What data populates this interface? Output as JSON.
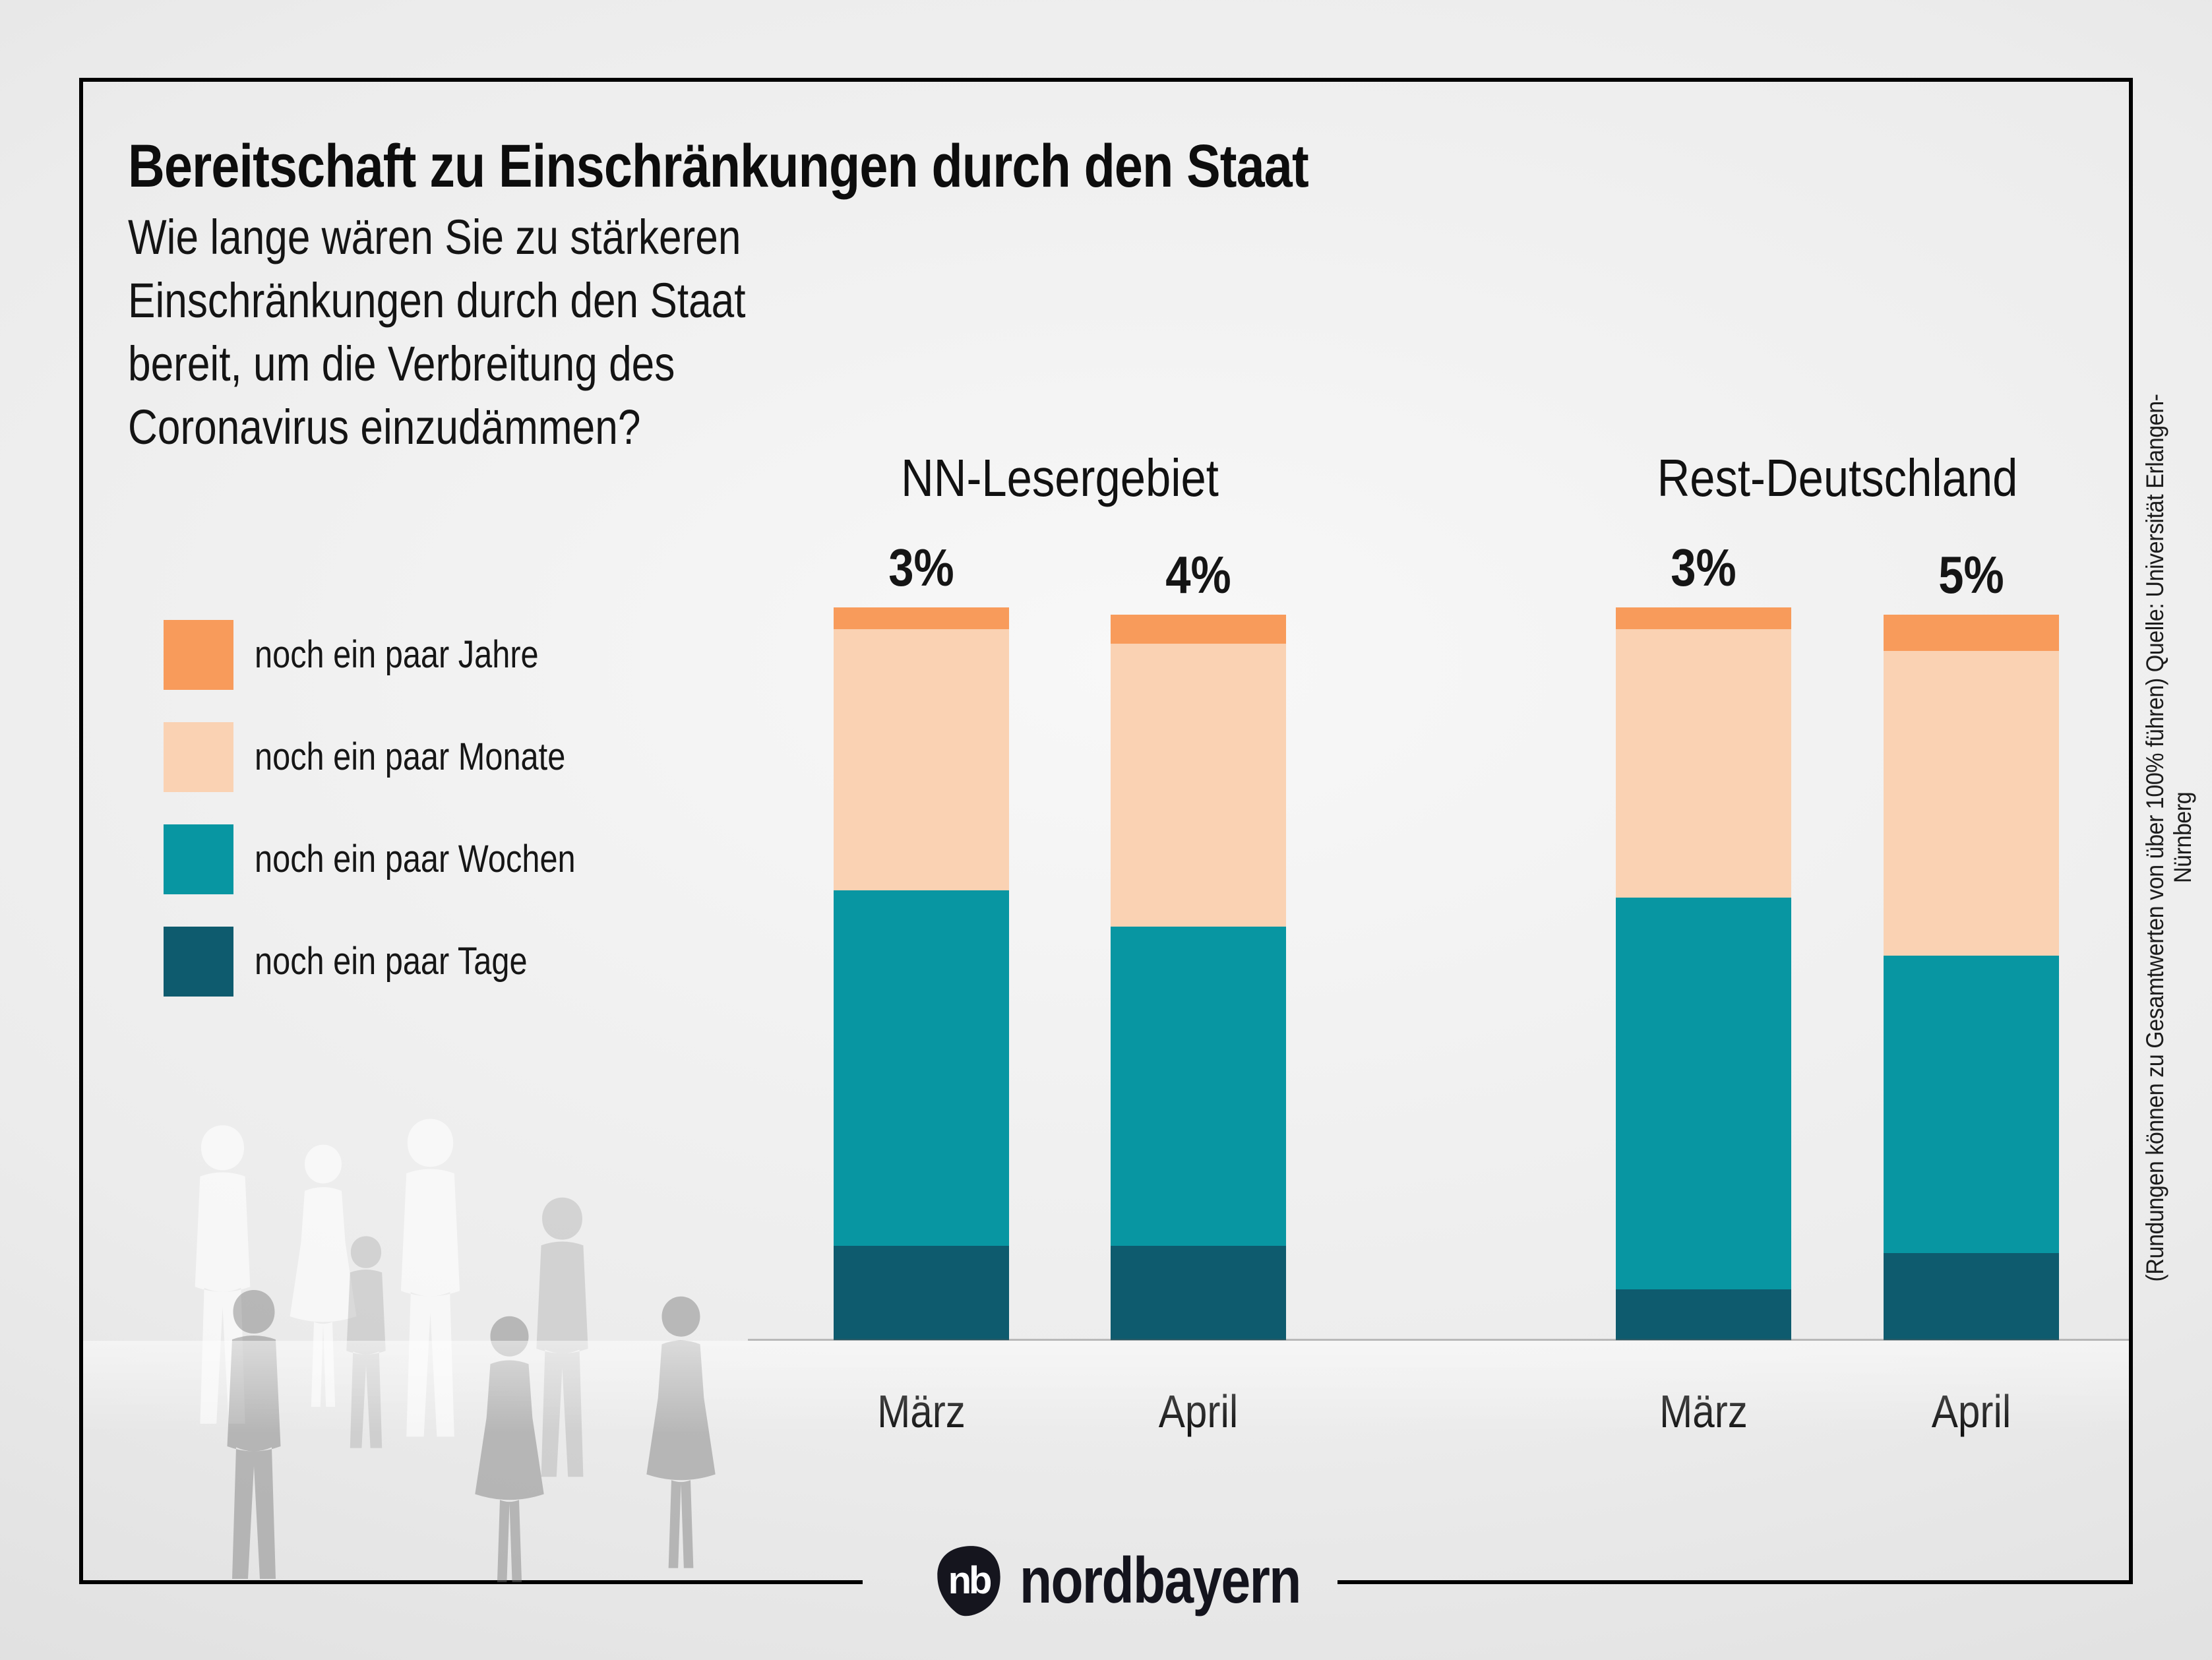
{
  "header": {
    "title": "Bereitschaft zu Einschränkungen durch den Staat",
    "question_lines": [
      "Wie lange wären Sie zu stärkeren",
      "Einschränkungen durch den Staat",
      "bereit, um die Verbreitung des",
      "Coronavirus einzudämmen?"
    ]
  },
  "palette": {
    "jahre": "#F89B5B",
    "monate": "#FAD2B3",
    "wochen": "#0896A2",
    "tage": "#0E5B6E",
    "label_dark": "#161616",
    "label_light": "#FFFFFF"
  },
  "legend": [
    {
      "key": "jahre",
      "label": "noch ein paar Jahre"
    },
    {
      "key": "monate",
      "label": "noch ein paar Monate"
    },
    {
      "key": "wochen",
      "label": "noch ein paar Wochen"
    },
    {
      "key": "tage",
      "label": "noch ein paar Tage"
    }
  ],
  "chart_data": {
    "type": "bar",
    "subtype": "stacked-vertical",
    "unit": "%",
    "value_suffix": "%",
    "segment_order_top_to_bottom": [
      "jahre",
      "monate",
      "wochen",
      "tage"
    ],
    "groups": [
      {
        "title": "NN-Lesergebiet",
        "bars": [
          {
            "category": "März",
            "values": {
              "jahre": 3,
              "monate": 36,
              "wochen": 49,
              "tage": 13
            }
          },
          {
            "category": "April",
            "values": {
              "jahre": 4,
              "monate": 39,
              "wochen": 44,
              "tage": 13
            }
          }
        ]
      },
      {
        "title": "Rest-Deutschland",
        "bars": [
          {
            "category": "März",
            "values": {
              "jahre": 3,
              "monate": 37,
              "wochen": 54,
              "tage": 7
            }
          },
          {
            "category": "April",
            "values": {
              "jahre": 5,
              "monate": 42,
              "wochen": 41,
              "tage": 12
            }
          }
        ]
      }
    ]
  },
  "source_note": "(Rundungen können zu Gesamtwerten von über 100% führen) Quelle: Universität Erlangen-Nürnberg",
  "footer": {
    "brand": "nordbayern",
    "monogram": "nb"
  }
}
